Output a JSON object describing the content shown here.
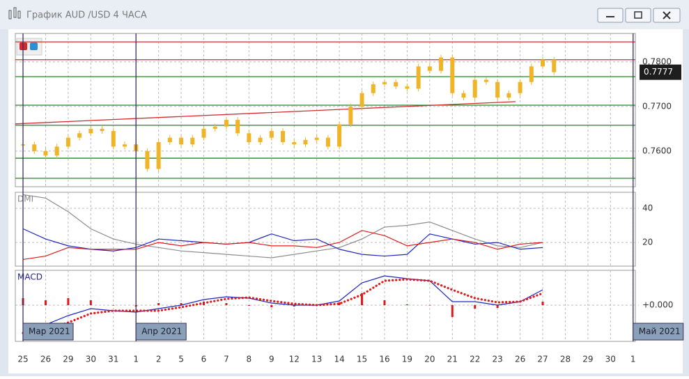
{
  "window": {
    "title": "График AUD /USD  4 ЧАСА"
  },
  "chart_data": [
    {
      "type": "candlestick",
      "color": "#f0b428",
      "x": [
        0,
        0.5,
        1,
        1.5,
        2,
        2.5,
        3,
        3.5,
        4,
        4.5,
        5,
        5.5,
        6,
        6.5,
        7,
        7.5,
        8,
        8.5,
        9,
        9.5,
        10,
        10.5,
        11,
        11.5,
        12,
        12.5,
        13,
        13.5,
        14,
        14.5,
        15,
        15.5,
        16,
        16.5,
        17,
        17.5,
        18,
        18.5,
        19,
        19.5,
        20,
        20.5,
        21,
        21.5,
        22,
        22.5,
        23,
        23.5
      ],
      "values": [
        0.7615,
        0.76,
        0.759,
        0.761,
        0.763,
        0.764,
        0.765,
        0.7645,
        0.761,
        0.7615,
        0.76,
        0.756,
        0.762,
        0.763,
        0.7615,
        0.763,
        0.765,
        0.7655,
        0.767,
        0.764,
        0.762,
        0.763,
        0.7645,
        0.762,
        0.7615,
        0.7625,
        0.763,
        0.761,
        0.766,
        0.77,
        0.773,
        0.775,
        0.7755,
        0.7745,
        0.774,
        0.779,
        0.778,
        0.781,
        0.773,
        0.772,
        0.776,
        0.7755,
        0.772,
        0.773,
        0.7755,
        0.779,
        0.7805,
        0.7777
      ],
      "xlim": [
        -0.34,
        27.1
      ],
      "ylim": [
        0.752,
        0.7864
      ],
      "yticks": [
        {
          "value": 0.78,
          "label": "0.7800"
        },
        {
          "value": 0.77,
          "label": "0.7700"
        },
        {
          "value": 0.76,
          "label": "0.7600"
        }
      ],
      "last_price": 0.7777,
      "levels": [
        {
          "value": 0.7845,
          "color": "#d22b2b"
        },
        {
          "value": 0.7805,
          "color": "#d22b2b"
        },
        {
          "value": 0.7767,
          "color": "#1e8a1e"
        },
        {
          "value": 0.7703,
          "color": "#1e8a1e"
        },
        {
          "value": 0.7658,
          "color": "#1e8a1e"
        },
        {
          "value": 0.7584,
          "color": "#1e8a1e"
        },
        {
          "value": 0.7539,
          "color": "#1e8a1e"
        }
      ],
      "trend": {
        "x": [
          -0.34,
          21.8
        ],
        "values": [
          0.7661,
          0.7711
        ],
        "color": "#d22b2b"
      }
    },
    {
      "type": "line",
      "label": "DMI",
      "xlim": [
        -0.34,
        27.1
      ],
      "ylim": [
        6.1,
        49.4
      ],
      "yticks": [
        40,
        20
      ],
      "x": [
        0,
        1,
        2,
        3,
        4,
        5,
        6,
        7,
        8,
        9,
        10,
        11,
        12,
        13,
        14,
        15,
        16,
        17,
        18,
        19,
        20,
        21,
        22,
        23
      ],
      "series": [
        {
          "color": "#8c8c8c",
          "values": [
            48,
            46,
            38,
            28,
            22,
            19,
            17,
            15,
            14,
            13,
            12,
            11,
            13,
            15,
            17,
            22,
            29,
            30,
            32,
            27,
            22,
            18,
            17,
            20
          ]
        },
        {
          "color": "#1c24c0",
          "values": [
            28,
            22,
            18,
            16,
            15,
            17,
            22,
            21,
            20,
            19,
            20,
            25,
            21,
            22,
            16,
            13,
            12,
            13,
            25,
            22,
            19,
            20,
            16,
            17
          ]
        },
        {
          "color": "#e01818",
          "values": [
            10,
            12,
            17,
            16,
            16,
            16,
            20,
            18,
            20,
            19,
            20,
            18,
            18,
            17,
            20,
            27,
            24,
            18,
            20,
            22,
            20,
            16,
            19,
            20
          ]
        }
      ]
    },
    {
      "type": "macd",
      "label": "MACD",
      "xlim": [
        -0.34,
        27.1
      ],
      "ylim": [
        -0.0052,
        0.005
      ],
      "yticks": [
        {
          "value": 0,
          "label": "+0.000"
        }
      ],
      "xticks": [
        {
          "value": 0,
          "label": "25"
        },
        {
          "value": 1,
          "label": "26"
        },
        {
          "value": 2,
          "label": "29"
        },
        {
          "value": 3,
          "label": "30"
        },
        {
          "value": 4,
          "label": "31"
        },
        {
          "value": 5,
          "label": "1"
        },
        {
          "value": 6,
          "label": "2"
        },
        {
          "value": 7,
          "label": "5"
        },
        {
          "value": 8,
          "label": "6"
        },
        {
          "value": 9,
          "label": "7"
        },
        {
          "value": 10,
          "label": "8"
        },
        {
          "value": 11,
          "label": "9"
        },
        {
          "value": 12,
          "label": "12"
        },
        {
          "value": 13,
          "label": "13"
        },
        {
          "value": 14,
          "label": "14"
        },
        {
          "value": 15,
          "label": "15"
        },
        {
          "value": 16,
          "label": "16"
        },
        {
          "value": 17,
          "label": "19"
        },
        {
          "value": 18,
          "label": "20"
        },
        {
          "value": 19,
          "label": "21"
        },
        {
          "value": 20,
          "label": "22"
        },
        {
          "value": 21,
          "label": "23"
        },
        {
          "value": 22,
          "label": "26"
        },
        {
          "value": 23,
          "label": "27"
        },
        {
          "value": 24,
          "label": "28"
        },
        {
          "value": 25,
          "label": "29"
        },
        {
          "value": 26,
          "label": "30"
        },
        {
          "value": 27,
          "label": "1"
        }
      ],
      "month_markers": [
        {
          "x": 0,
          "label": "Мар 2021"
        },
        {
          "x": 5,
          "label": "Апр 2021"
        },
        {
          "x": 27,
          "label": "Май 2021"
        }
      ],
      "x": [
        0,
        1,
        2,
        3,
        4,
        5,
        6,
        7,
        8,
        9,
        10,
        11,
        12,
        13,
        14,
        15,
        16,
        17,
        18,
        19,
        20,
        21,
        22,
        23
      ],
      "series": [
        {
          "color": "#1c24c0",
          "values": [
            -0.003,
            -0.0028,
            -0.0015,
            -0.0005,
            -0.0008,
            -0.001,
            -0.0005,
            0.0,
            0.0008,
            0.0012,
            0.001,
            0.0003,
            0.0,
            0.0,
            0.0006,
            0.0032,
            0.0042,
            0.0038,
            0.0035,
            0.0005,
            0.0005,
            0.0,
            0.0005,
            0.0022
          ]
        },
        {
          "color": "#e01818",
          "dotted": true,
          "values": [
            -0.004,
            -0.0035,
            -0.0025,
            -0.0012,
            -0.0008,
            -0.0008,
            -0.0008,
            -0.0003,
            0.0003,
            0.0009,
            0.0011,
            0.0006,
            0.0002,
            0.0,
            0.0002,
            0.0015,
            0.0035,
            0.0037,
            0.0035,
            0.0022,
            0.001,
            0.0004,
            0.0005,
            0.0017
          ]
        }
      ],
      "histogram": {
        "color": "#e01818",
        "values": [
          0.001,
          0.0007,
          0.001,
          0.0007,
          0,
          -0.0002,
          0.0003,
          0.0003,
          0.0005,
          0.0003,
          -0.0001,
          -0.0003,
          -0.0002,
          0,
          0.0004,
          0.0017,
          0.0007,
          0.0001,
          0,
          -0.0017,
          -0.0005,
          -0.0004,
          0,
          0.0005
        ]
      }
    }
  ]
}
